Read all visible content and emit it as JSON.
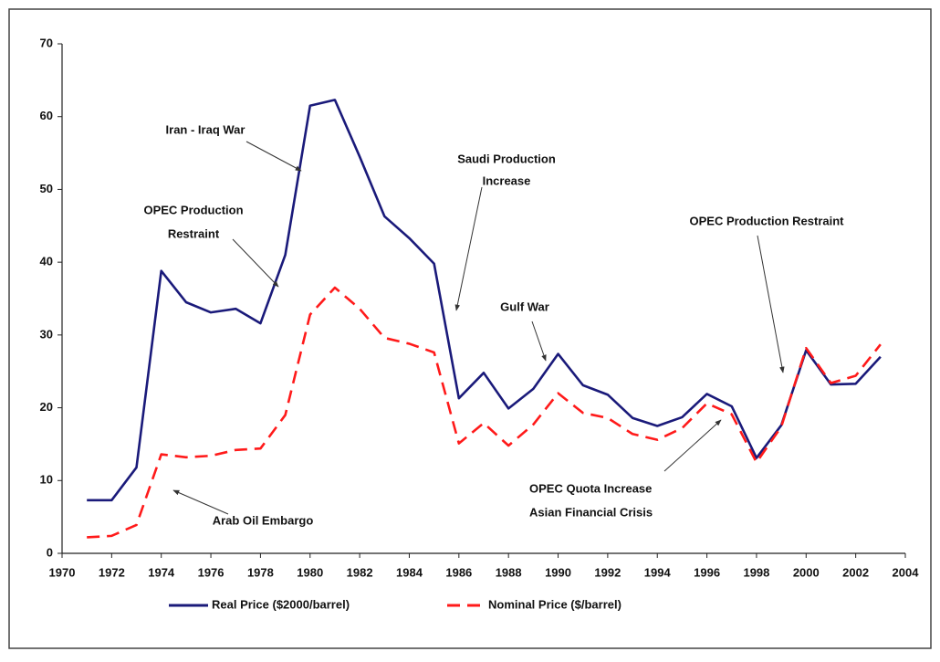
{
  "chart_data": {
    "type": "line",
    "x": [
      1971,
      1972,
      1973,
      1974,
      1975,
      1976,
      1977,
      1978,
      1979,
      1980,
      1981,
      1982,
      1983,
      1984,
      1985,
      1986,
      1987,
      1988,
      1989,
      1990,
      1991,
      1992,
      1993,
      1994,
      1995,
      1996,
      1997,
      1998,
      1999,
      2000,
      2001,
      2002,
      2003
    ],
    "series": [
      {
        "name": "Real Price ($2000/barrel)",
        "color": "#1a1a7a",
        "dashed": false,
        "values": [
          7.3,
          7.3,
          11.8,
          38.8,
          34.5,
          33.1,
          33.6,
          31.6,
          41,
          61.5,
          62.3,
          54.5,
          46.3,
          43.3,
          39.8,
          21.3,
          24.8,
          19.9,
          22.6,
          27.4,
          23.1,
          21.8,
          18.6,
          17.5,
          18.7,
          21.9,
          20.2,
          13.1,
          17.6,
          27.9,
          23.2,
          23.3,
          27.0
        ]
      },
      {
        "name": "Nominal Price ($/barrel)",
        "color": "#ff1a1a",
        "dashed": true,
        "values": [
          2.2,
          2.4,
          3.9,
          13.6,
          13.2,
          13.4,
          14.2,
          14.4,
          19,
          32.8,
          36.5,
          33.6,
          29.6,
          28.8,
          27.6,
          15.1,
          17.9,
          14.8,
          17.7,
          22,
          19.3,
          18.6,
          16.4,
          15.6,
          17.2,
          20.6,
          19.1,
          12.5,
          17.4,
          28.2,
          23.4,
          24.4,
          28.7
        ]
      }
    ],
    "xlim": [
      1970,
      2004
    ],
    "xticks": [
      1970,
      1972,
      1974,
      1976,
      1978,
      1980,
      1982,
      1984,
      1986,
      1988,
      1990,
      1992,
      1994,
      1996,
      1998,
      2000,
      2002,
      2004
    ],
    "ylim": [
      0,
      70
    ],
    "yticks": [
      0,
      10,
      20,
      30,
      40,
      50,
      60,
      70
    ],
    "grid": false,
    "legend": "bottom",
    "annotations": [
      [
        "Iran - Iraq War"
      ],
      [
        "OPEC Production",
        "Restraint"
      ],
      [
        "Saudi Production",
        "Increase"
      ],
      [
        "Gulf War"
      ],
      [
        "OPEC Production Restraint"
      ],
      [
        "OPEC Quota Increase",
        "Asian Financial Crisis"
      ],
      [
        "Arab Oil Embargo"
      ]
    ]
  }
}
